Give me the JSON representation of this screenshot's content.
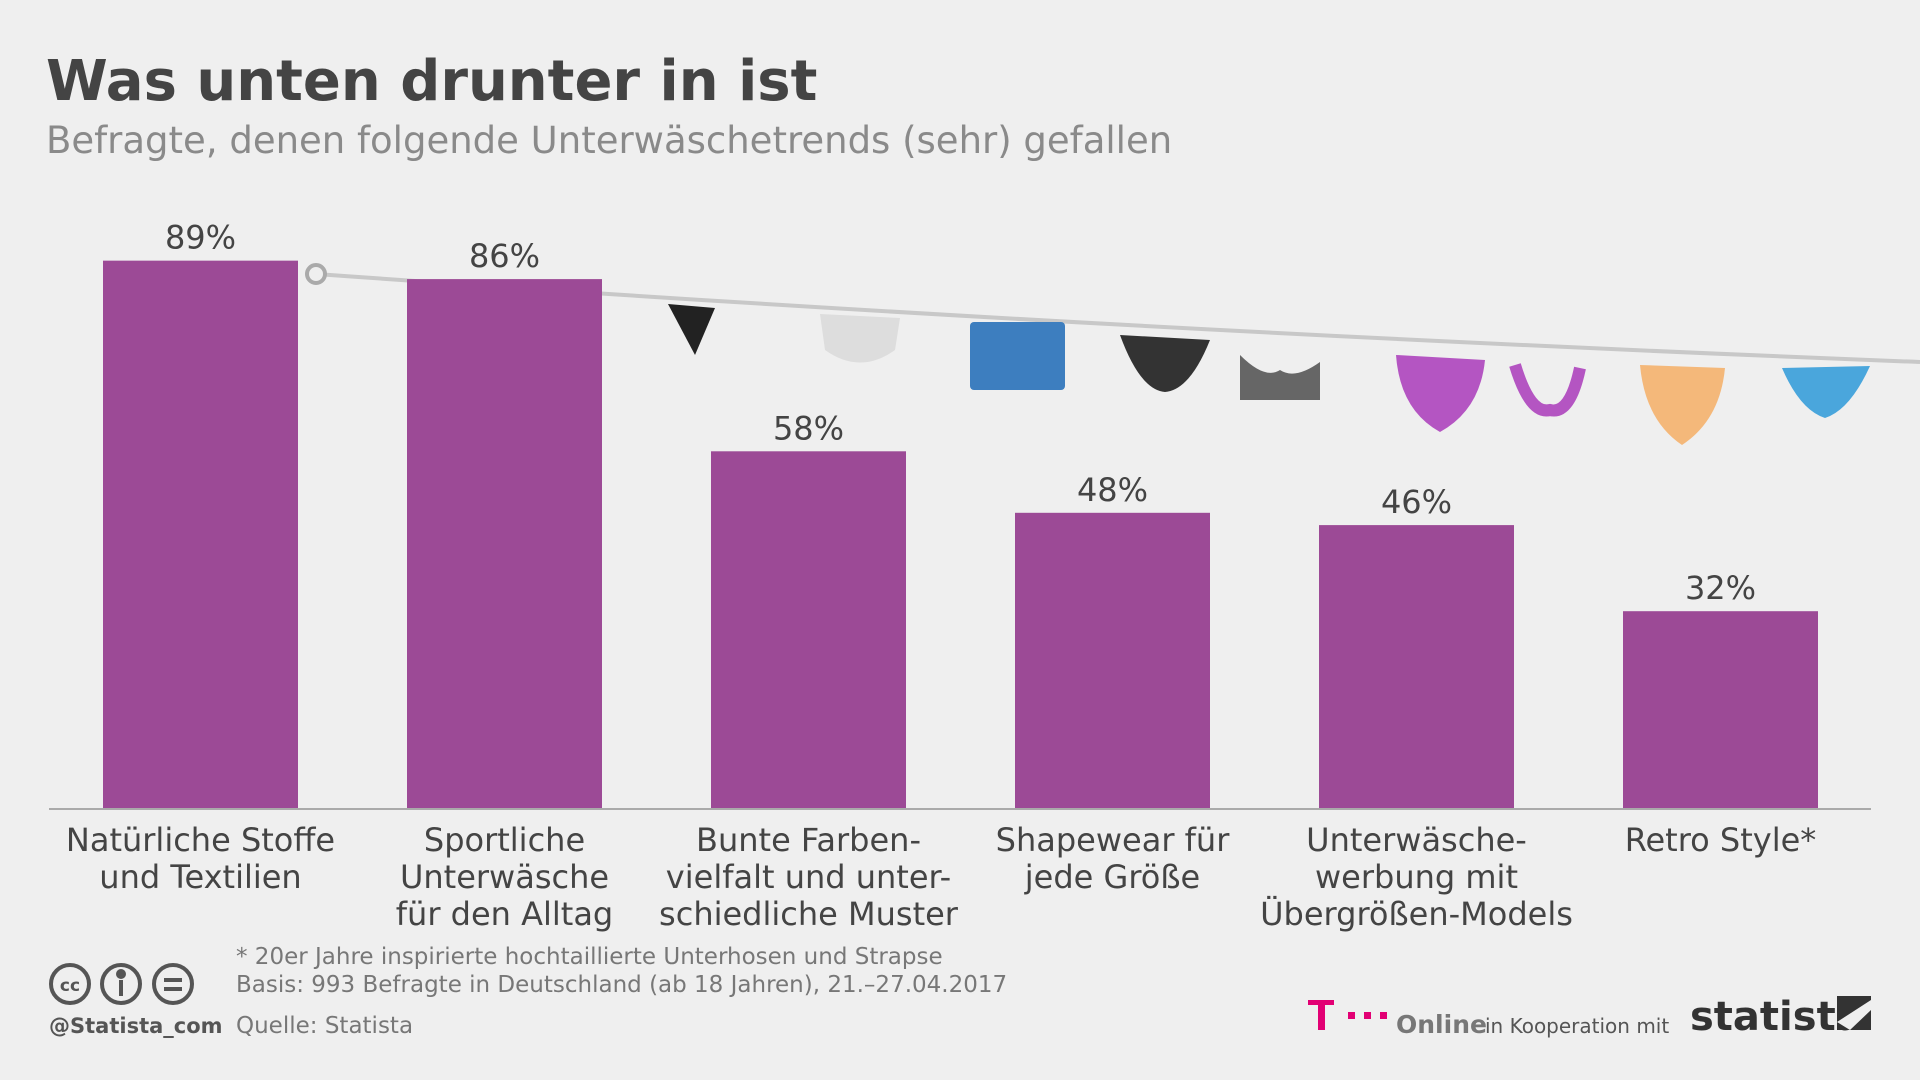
{
  "chart_data": {
    "type": "bar",
    "title": "Was unten drunter in ist",
    "subtitle": "Befragte, denen folgende Unterwäschetrends (sehr) gefallen",
    "categories": [
      [
        "Natürliche Stoffe",
        "und Textilien"
      ],
      [
        "Sportliche",
        "Unterwäsche",
        "für den Alltag"
      ],
      [
        "Bunte Farben-",
        "vielfalt und unter-",
        "schiedliche Muster"
      ],
      [
        "Shapewear für",
        "jede Größe"
      ],
      [
        "Unterwäsche-",
        "werbung mit",
        "Übergrößen-Models"
      ],
      [
        "Retro Style*"
      ]
    ],
    "values": [
      89,
      86,
      58,
      48,
      46,
      32
    ],
    "value_labels": [
      "89%",
      "86%",
      "58%",
      "48%",
      "46%",
      "32%"
    ],
    "color": "#9c4a96"
  },
  "footer": {
    "note": "* 20er Jahre inspirierte hochtaillierte Unterhosen und Strapse",
    "basis": "Basis: 993 Befragte in Deutschland (ab 18 Jahren), 21.–27.04.2017",
    "source": "Quelle: Statista",
    "handle": "@Statista_com",
    "partner": "Online",
    "cooperation": "in Kooperation mit",
    "brand": "statista"
  }
}
